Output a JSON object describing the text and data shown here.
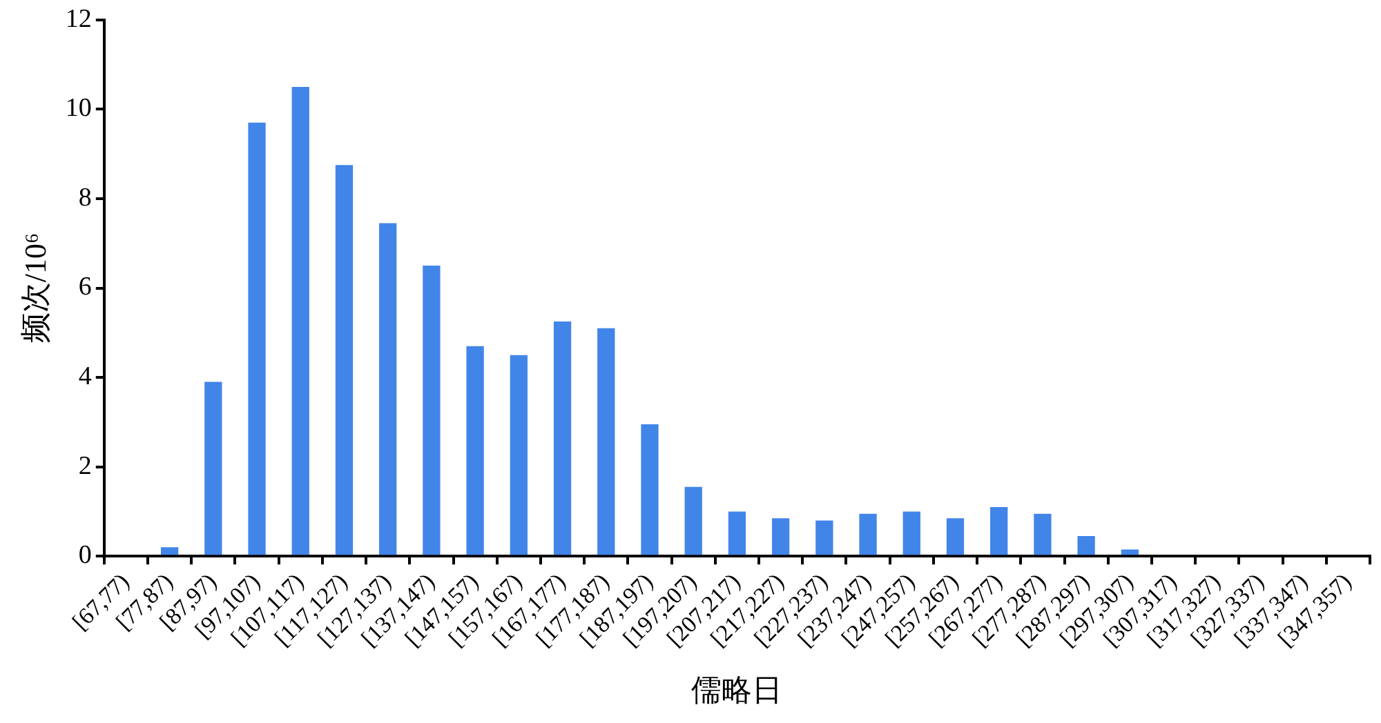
{
  "chart_data": {
    "type": "bar",
    "xlabel": "儒略日",
    "ylabel": "频次/10⁶",
    "categories": [
      "[67,77)",
      "[77,87)",
      "[87,97)",
      "[97,107)",
      "[107,117)",
      "[117,127)",
      "[127,137)",
      "[137,147)",
      "[147,157)",
      "[157,167)",
      "[167,177)",
      "[177,187)",
      "[187,197)",
      "[197,207)",
      "[207,217)",
      "[217,227)",
      "[227,237)",
      "[237,247)",
      "[247,257)",
      "[257,267)",
      "[267,277)",
      "[277,287)",
      "[287,297)",
      "[297,307)",
      "[307,317)",
      "[317,327)",
      "[327,337)",
      "[337,347)",
      "[347,357)"
    ],
    "values": [
      0,
      0.2,
      3.9,
      9.7,
      10.5,
      8.75,
      7.45,
      6.5,
      4.7,
      4.5,
      5.25,
      5.1,
      2.95,
      1.55,
      1.0,
      0.85,
      0.8,
      0.95,
      1.0,
      0.85,
      1.1,
      0.95,
      0.45,
      0.15,
      0,
      0,
      0,
      0,
      0
    ],
    "color": "#4285e8",
    "ylim": [
      0,
      12
    ],
    "yticks": [
      0,
      2,
      4,
      6,
      8,
      10,
      12
    ],
    "grid": false,
    "legend": false
  }
}
